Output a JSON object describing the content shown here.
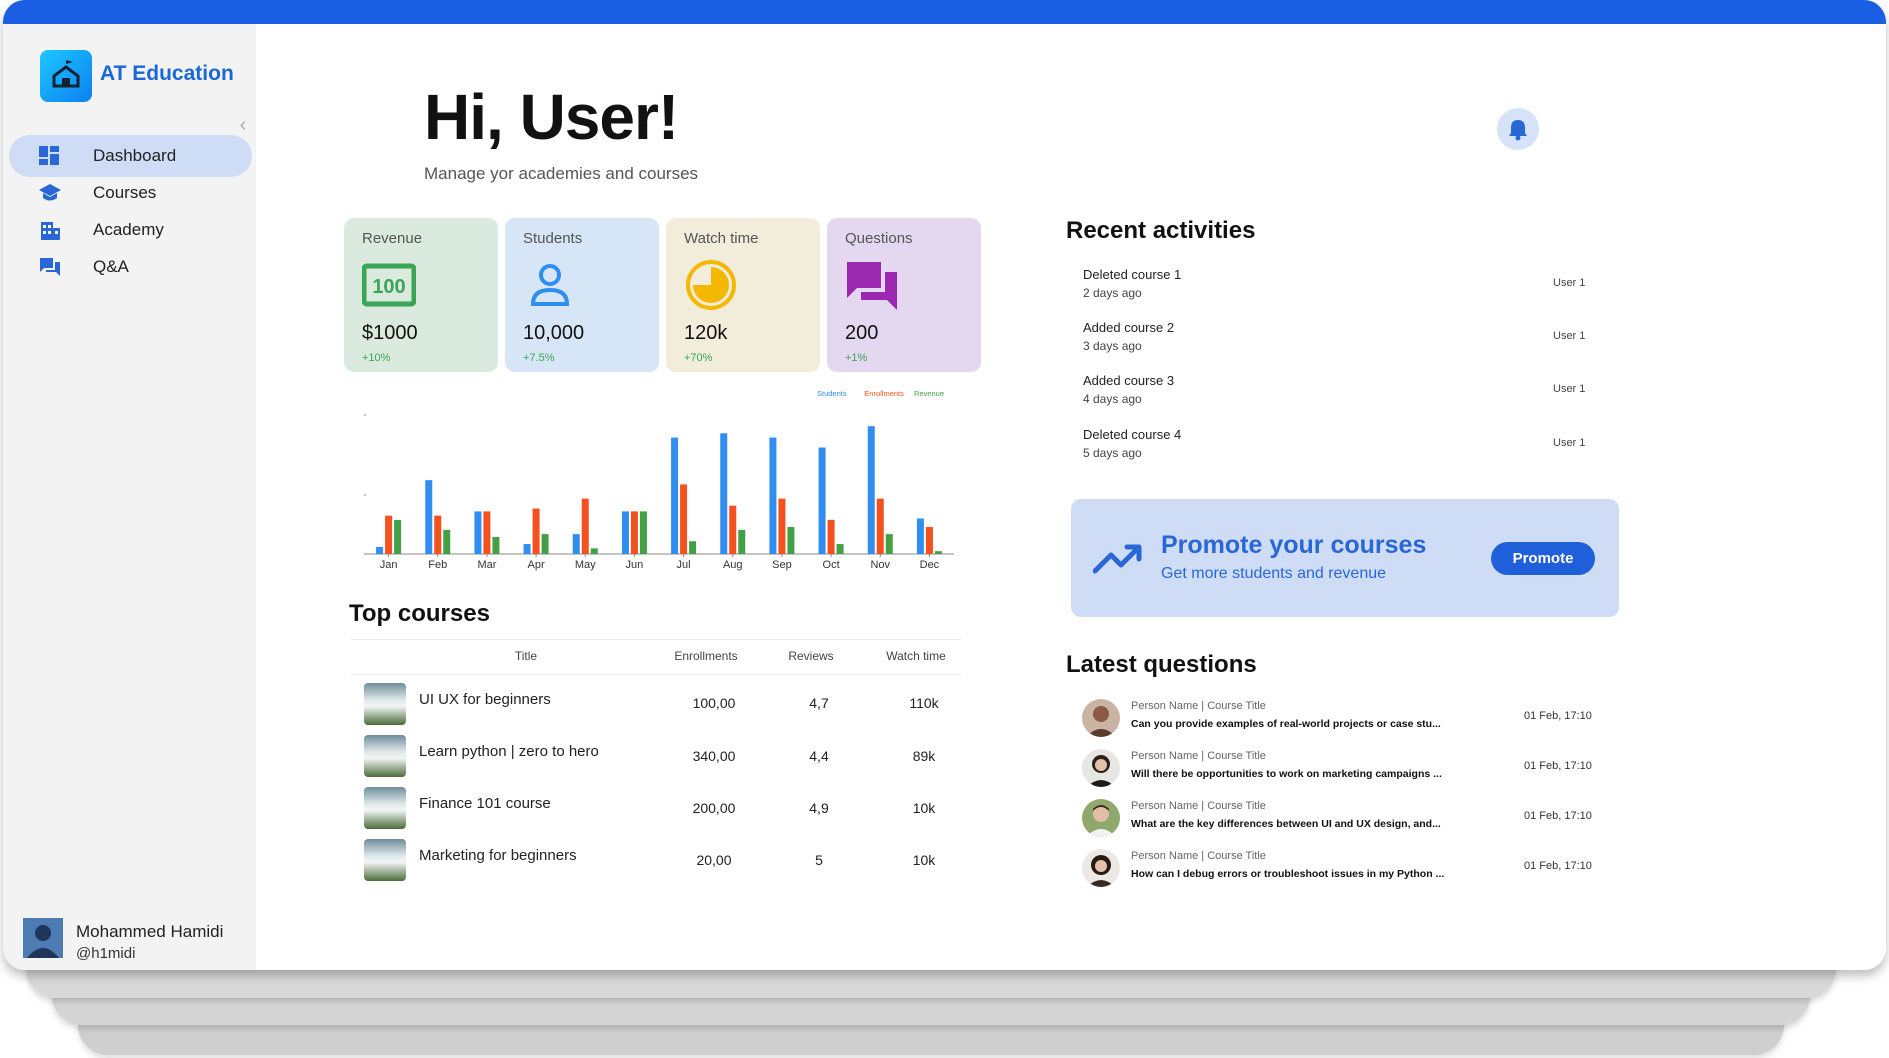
{
  "brand": {
    "name": "AT Education",
    "accent": "#1a5ee3"
  },
  "sidebar": {
    "items": [
      {
        "label": "Dashboard",
        "icon": "dashboard-icon",
        "active": true
      },
      {
        "label": "Courses",
        "icon": "graduation-cap-icon",
        "active": false
      },
      {
        "label": "Academy",
        "icon": "building-icon",
        "active": false
      },
      {
        "label": "Q&A",
        "icon": "chat-bubbles-icon",
        "active": false
      }
    ],
    "user": {
      "name": "Mohammed Hamidi",
      "handle": "@h1midi"
    }
  },
  "header": {
    "greeting": "Hi, User!",
    "subtitle": "Manage yor academies and courses"
  },
  "stats": [
    {
      "title": "Revenue",
      "value": "$1000",
      "change": "+10%",
      "color": "#dbeadf",
      "icon": "money-icon"
    },
    {
      "title": "Students",
      "value": "10,000",
      "change": "+7.5%",
      "color": "#d6e6f7",
      "icon": "person-icon"
    },
    {
      "title": "Watch time",
      "value": "120k",
      "change": "+70%",
      "color": "#f2ecdb",
      "icon": "clock-pie-icon"
    },
    {
      "title": "Questions",
      "value": "200",
      "change": "+1%",
      "color": "#e3d8f0",
      "icon": "chat-icon"
    }
  ],
  "chart_data": {
    "type": "bar",
    "categories": [
      "Jan",
      "Feb",
      "Mar",
      "Apr",
      "May",
      "Jun",
      "Jul",
      "Aug",
      "Sep",
      "Oct",
      "Nov",
      "Dec"
    ],
    "series": [
      {
        "name": "Students",
        "color": "#2f8ef0",
        "values": [
          5,
          52,
          30,
          7,
          14,
          30,
          82,
          85,
          82,
          75,
          90,
          25
        ]
      },
      {
        "name": "Enrollments",
        "color": "#f4511e",
        "values": [
          27,
          27,
          30,
          32,
          39,
          30,
          49,
          34,
          39,
          24,
          39,
          19
        ]
      },
      {
        "name": "Revenue",
        "color": "#43a047",
        "values": [
          24,
          17,
          12,
          14,
          4,
          30,
          9,
          17,
          19,
          7,
          14,
          2
        ]
      }
    ],
    "title": "",
    "xlabel": "",
    "ylabel": "",
    "ylim": [
      0,
      100
    ],
    "legend": "top-right",
    "grid": false
  },
  "top_courses": {
    "title": "Top courses",
    "headers": {
      "title": "Title",
      "enrollments": "Enrollments",
      "reviews": "Reviews",
      "watch": "Watch time"
    },
    "rows": [
      {
        "title": "UI UX for beginners",
        "enrollments": "100,00",
        "reviews": "4,7",
        "watch": "110k"
      },
      {
        "title": "Learn python | zero to hero",
        "enrollments": "340,00",
        "reviews": "4,4",
        "watch": "89k"
      },
      {
        "title": "Finance 101 course",
        "enrollments": "200,00",
        "reviews": "4,9",
        "watch": "10k"
      },
      {
        "title": "Marketing for beginners",
        "enrollments": "20,00",
        "reviews": "5",
        "watch": "10k"
      }
    ]
  },
  "activities": {
    "title": "Recent activities",
    "items": [
      {
        "title": "Deleted course 1",
        "time": "2 days ago",
        "user": "User 1"
      },
      {
        "title": "Added course 2",
        "time": "3 days ago",
        "user": "User 1"
      },
      {
        "title": "Added course 3",
        "time": "4 days ago",
        "user": "User 1"
      },
      {
        "title": "Deleted course 4",
        "time": "5 days ago",
        "user": "User 1"
      }
    ]
  },
  "promo": {
    "title": "Promote your courses",
    "subtitle": "Get more students and revenue",
    "button": "Promote"
  },
  "questions": {
    "title": "Latest questions",
    "items": [
      {
        "meta": "Person Name | Course Title",
        "text": "Can you provide examples of real-world projects or case stu...",
        "time": "01 Feb, 17:10"
      },
      {
        "meta": "Person Name | Course Title",
        "text": "Will there be opportunities to work on marketing campaigns ...",
        "time": "01 Feb, 17:10"
      },
      {
        "meta": "Person Name | Course Title",
        "text": "What are the key differences between UI and UX design, and...",
        "time": "01 Feb, 17:10"
      },
      {
        "meta": "Person Name | Course Title",
        "text": "How can I debug errors or troubleshoot issues in my Python ...",
        "time": "01 Feb, 17:10"
      }
    ]
  }
}
